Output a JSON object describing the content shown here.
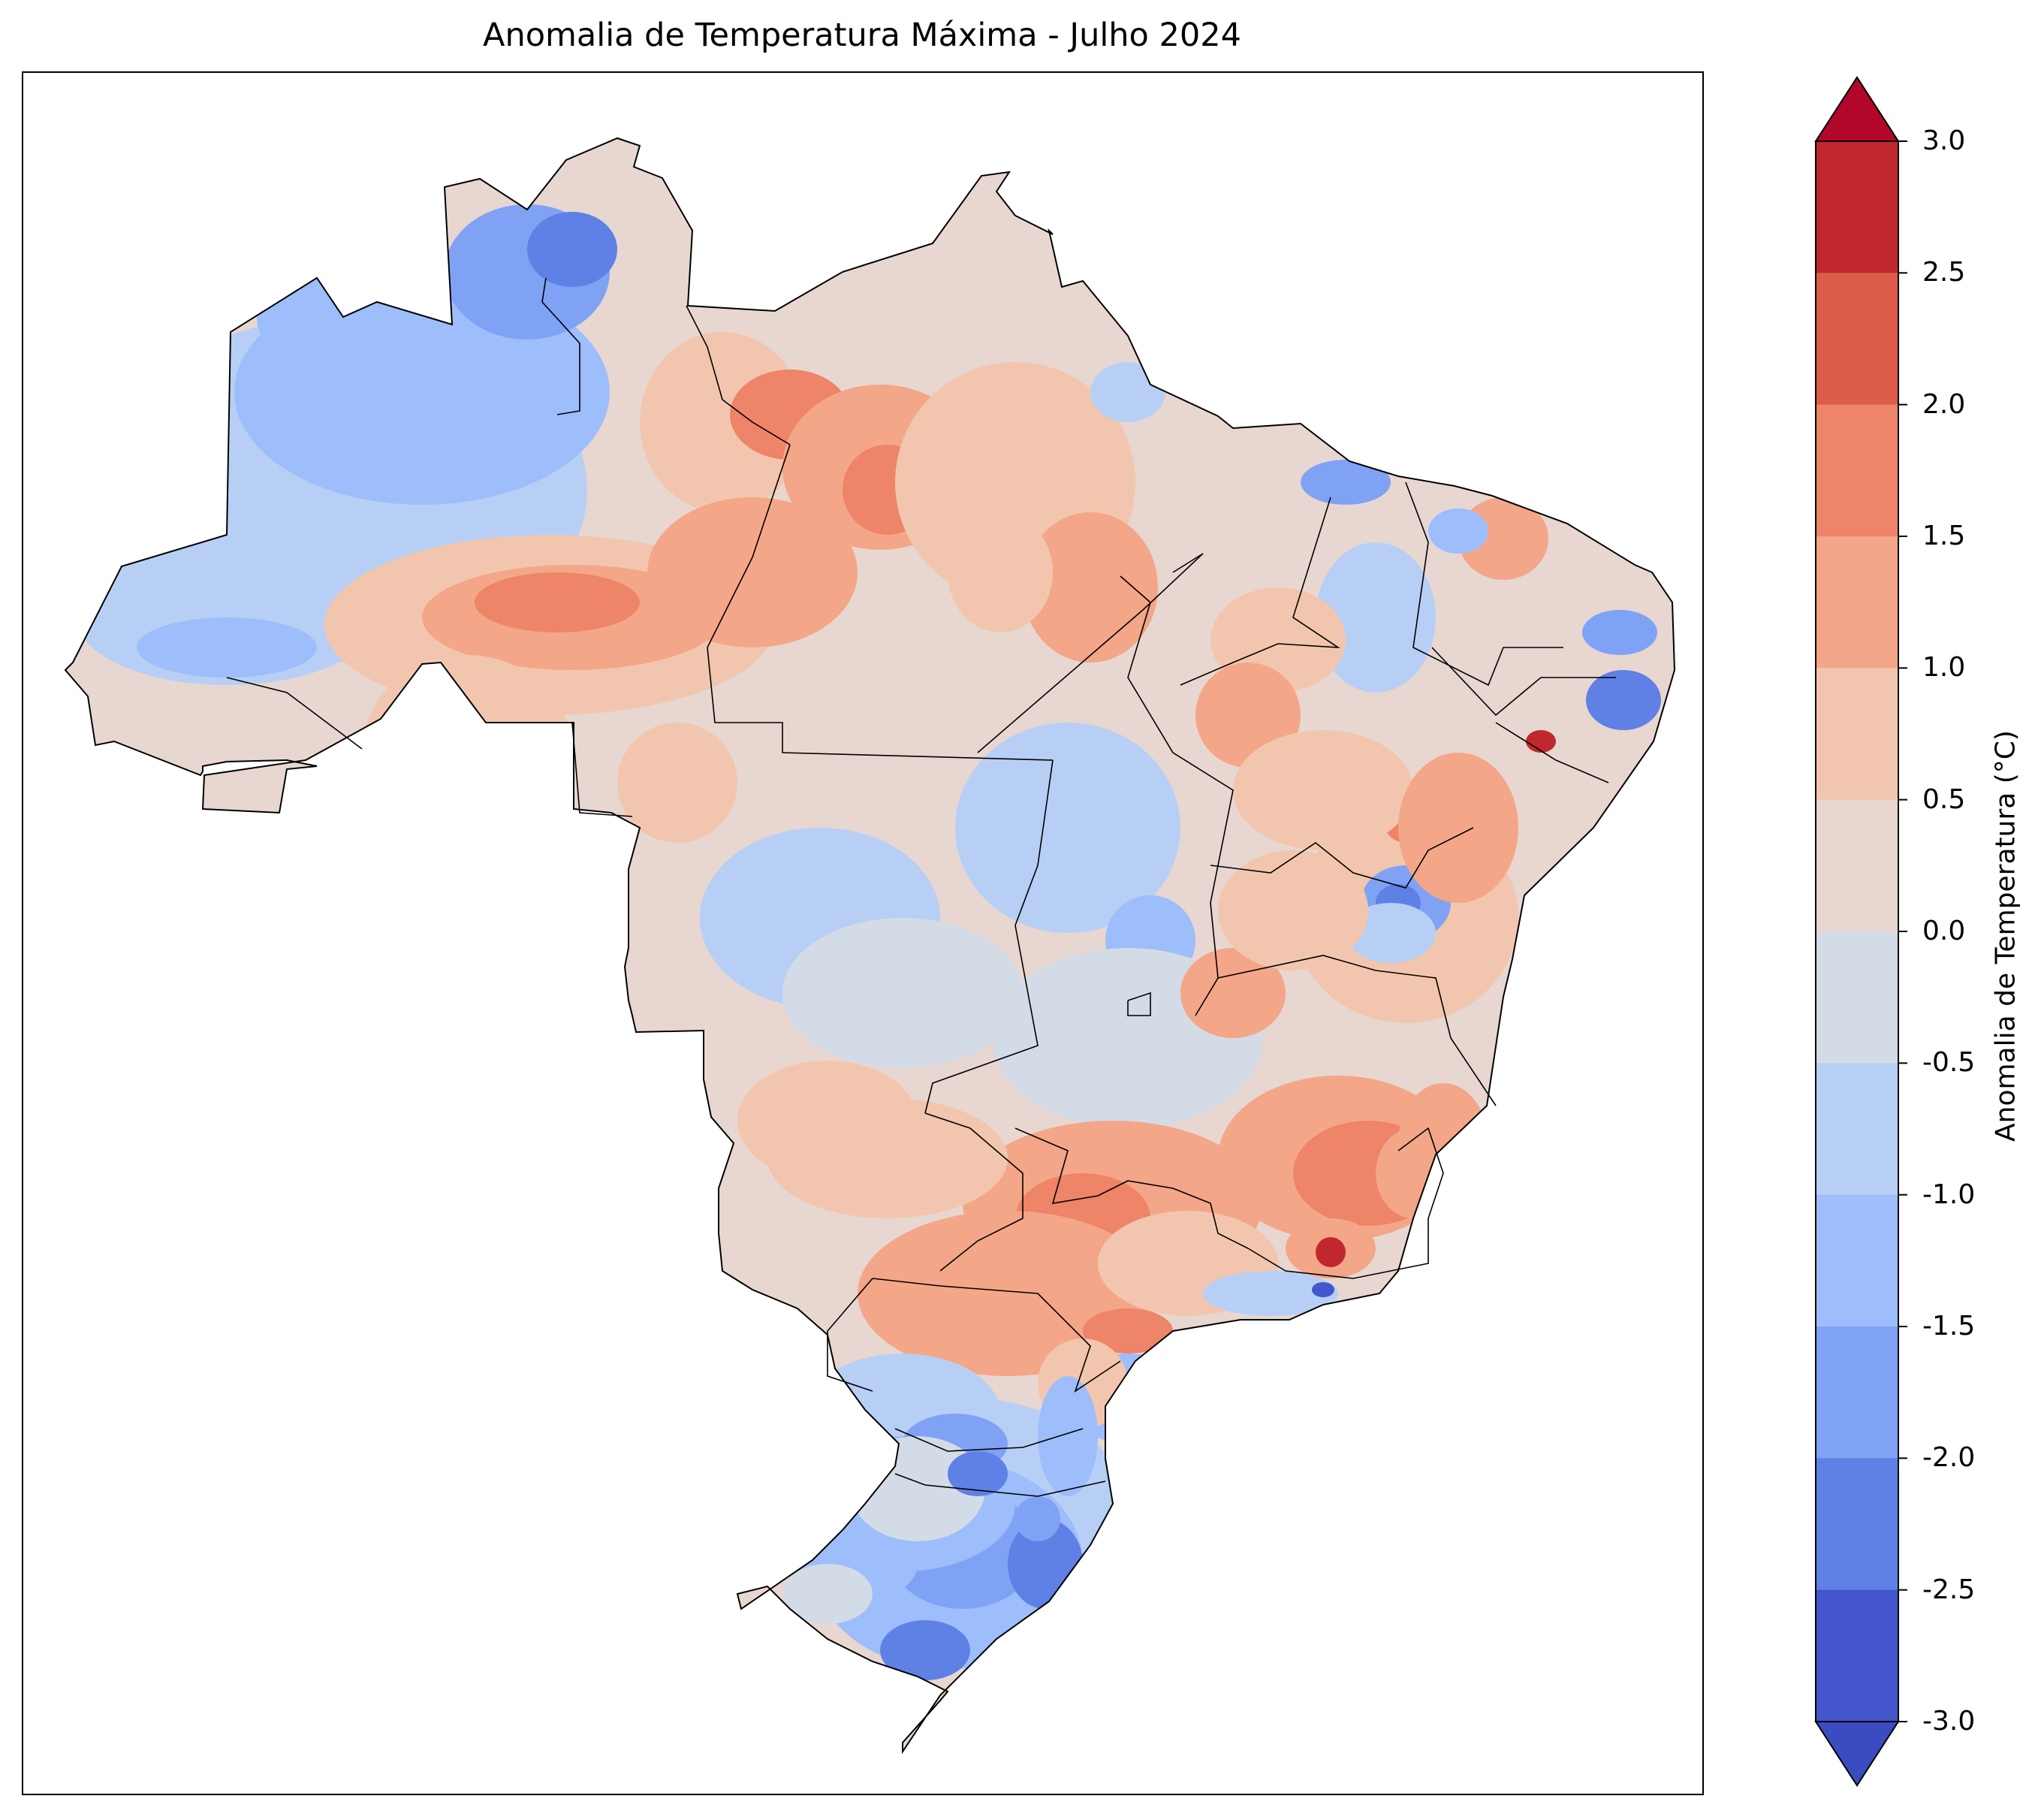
{
  "title": "Anomalia de Temperatura Máxima - Julho 2024",
  "colorbar": {
    "label": "Anomalia de Temperatura (°C)",
    "ticks": [
      "3.0",
      "2.5",
      "2.0",
      "1.5",
      "1.0",
      "0.5",
      "0.0",
      "-0.5",
      "-1.0",
      "-1.5",
      "-2.0",
      "-2.5",
      "-3.0"
    ],
    "levels": [
      {
        "from": 2.5,
        "to": 3.0,
        "color": "#c0282d"
      },
      {
        "from": 2.0,
        "to": 2.5,
        "color": "#dc5d4a"
      },
      {
        "from": 1.5,
        "to": 2.0,
        "color": "#ee8468"
      },
      {
        "from": 1.0,
        "to": 1.5,
        "color": "#f4a688"
      },
      {
        "from": 0.5,
        "to": 1.0,
        "color": "#f2c6ae"
      },
      {
        "from": 0.0,
        "to": 0.5,
        "color": "#e7d7d0"
      },
      {
        "from": -0.5,
        "to": 0.0,
        "color": "#d3dbe6"
      },
      {
        "from": -1.0,
        "to": -0.5,
        "color": "#b8cff5"
      },
      {
        "from": -1.5,
        "to": -1.0,
        "color": "#9dbdfb"
      },
      {
        "from": -2.0,
        "to": -1.5,
        "color": "#7fa2f5"
      },
      {
        "from": -2.5,
        "to": -2.0,
        "color": "#5f80e4"
      },
      {
        "from": -3.0,
        "to": -2.5,
        "color": "#4356cc"
      }
    ],
    "extend_max_color": "#b2062a",
    "extend_min_color": "#3b4cc0",
    "colormap": "coolwarm"
  }
}
